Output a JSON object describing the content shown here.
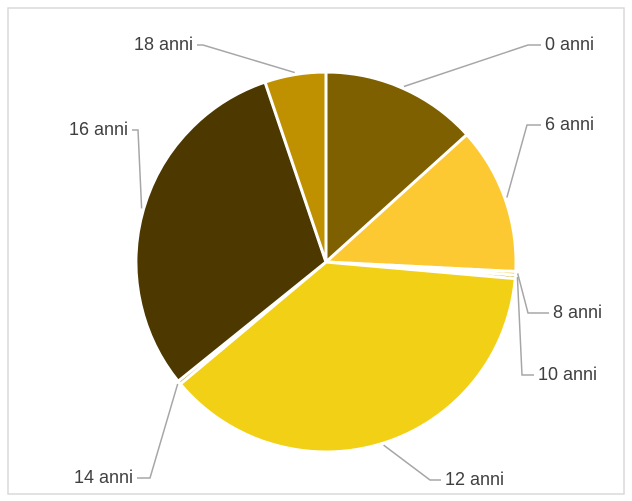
{
  "chart_data": {
    "type": "pie",
    "categories": [
      "0 anni",
      "6 anni",
      "8 anni",
      "10 anni",
      "12 anni",
      "14 anni",
      "16 anni",
      "18 anni"
    ],
    "values": [
      13.3,
      12.5,
      0.3,
      0.3,
      37.5,
      0.3,
      30.6,
      5.2
    ],
    "colors": [
      "#7f6000",
      "#fdc933",
      "#e6b800",
      "#c9a400",
      "#f2d016",
      "#a88400",
      "#4d3800",
      "#bf9000"
    ]
  }
}
